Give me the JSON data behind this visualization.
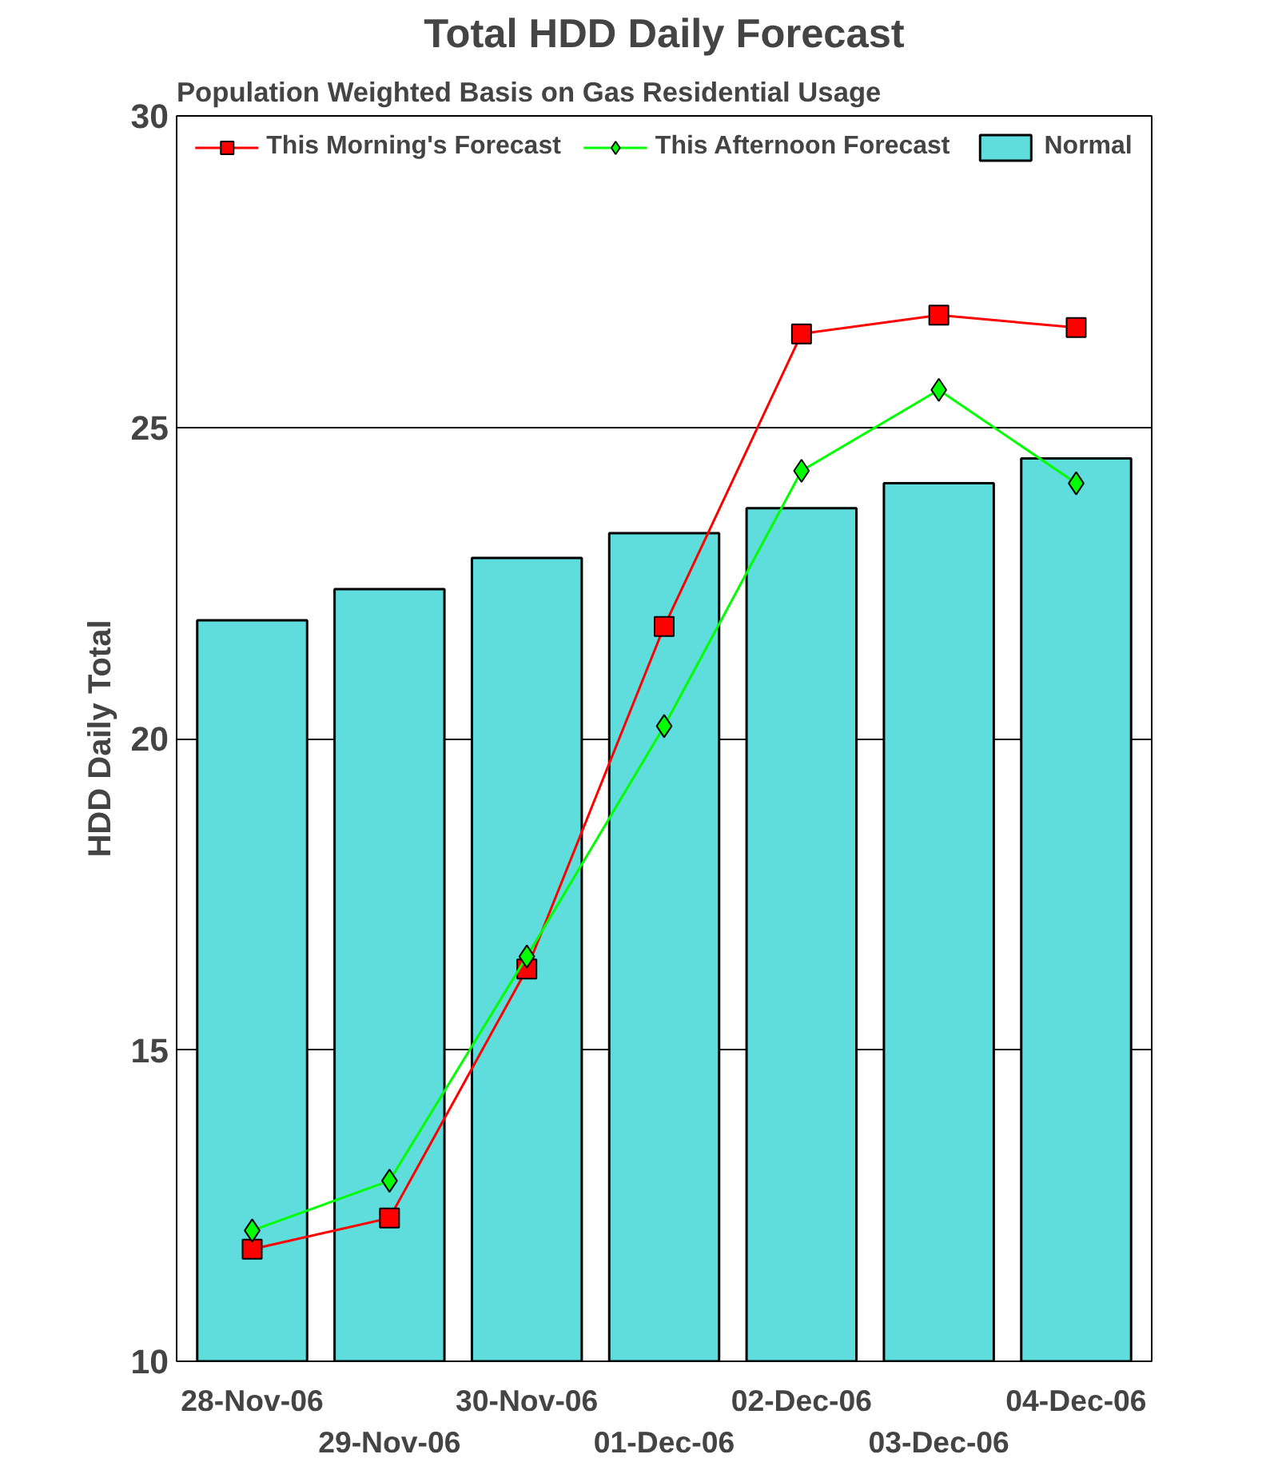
{
  "chart_data": {
    "type": "bar",
    "title": "Total HDD Daily Forecast",
    "subtitle": "Population Weighted Basis on Gas Residential Usage",
    "ylabel": "HDD Daily Total",
    "categories": [
      "28-Nov-06",
      "29-Nov-06",
      "30-Nov-06",
      "01-Dec-06",
      "02-Dec-06",
      "03-Dec-06",
      "04-Dec-06"
    ],
    "series": [
      {
        "name": "Normal",
        "color": "#5fdcdc",
        "values": [
          21.9,
          22.4,
          22.9,
          23.3,
          23.7,
          24.1,
          24.5
        ]
      },
      {
        "name": "This Morning's Forecast",
        "type": "line",
        "color": "#ff0000",
        "marker": "square",
        "values": [
          11.8,
          12.3,
          16.3,
          21.8,
          26.5,
          26.8,
          26.6
        ]
      },
      {
        "name": "This Afternoon Forecast",
        "type": "line",
        "color": "#00ff00",
        "marker": "diamond",
        "values": [
          12.1,
          12.9,
          16.5,
          20.2,
          24.3,
          25.6,
          24.1
        ]
      }
    ],
    "ylim": [
      10,
      30
    ],
    "yticks": [
      10,
      15,
      20,
      25,
      30
    ],
    "grid": "y",
    "legend": "top"
  }
}
